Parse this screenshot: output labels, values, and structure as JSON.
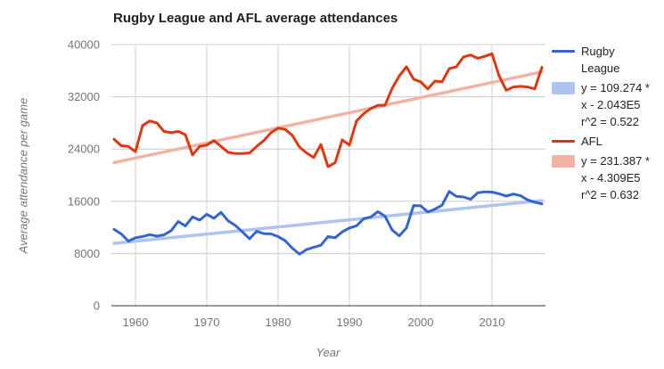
{
  "colors": {
    "rugby_line": "#3366cc",
    "afl_line": "#dc3912",
    "rugby_trend": "#aec3ef",
    "afl_trend": "#f3b3a4",
    "grid": "#cccccc",
    "axis_baseline": "#333333",
    "tick_text": "#757575",
    "title_text": "#212121",
    "legend_text": "#212121",
    "background": "#ffffff"
  },
  "legend": {
    "items": [
      {
        "swatch": "line",
        "label": "Rugby League"
      },
      {
        "swatch": "box",
        "line1": "y = 109.274 *",
        "line2": "x - 2.043E5",
        "line3": "r^2 = 0.522"
      },
      {
        "swatch": "line",
        "label": "AFL"
      },
      {
        "swatch": "box",
        "line1": "y = 231.387 *",
        "line2": "x - 4.309E5",
        "line3": "r^2 = 0.632"
      }
    ]
  },
  "chart_data": {
    "type": "line",
    "title": "Rugby League and AFL average attendances",
    "xlabel": "Year",
    "ylabel": "Average attendance per game",
    "legend_position": "right",
    "grid": true,
    "xlim": [
      1956.6,
      2017.6
    ],
    "ylim": [
      0,
      40000
    ],
    "x_range": [
      1957,
      2017
    ],
    "x_tick_values": [
      1960,
      1970,
      1980,
      1990,
      2000,
      2010
    ],
    "x_tick_labels": [
      "1960",
      "1970",
      "1980",
      "1990",
      "2000",
      "2010"
    ],
    "y_tick_values": [
      0,
      8000,
      16000,
      24000,
      32000,
      40000
    ],
    "y_tick_labels": [
      "0",
      "8000",
      "16000",
      "24000",
      "32000",
      "40000"
    ],
    "years": [
      1957,
      1958,
      1959,
      1960,
      1961,
      1962,
      1963,
      1964,
      1965,
      1966,
      1967,
      1968,
      1969,
      1970,
      1971,
      1972,
      1973,
      1974,
      1975,
      1976,
      1977,
      1978,
      1979,
      1980,
      1981,
      1982,
      1983,
      1984,
      1985,
      1986,
      1987,
      1988,
      1989,
      1990,
      1991,
      1992,
      1993,
      1994,
      1995,
      1996,
      1997,
      1998,
      1999,
      2000,
      2001,
      2002,
      2003,
      2004,
      2005,
      2006,
      2007,
      2008,
      2009,
      2010,
      2011,
      2012,
      2013,
      2014,
      2015,
      2016,
      2017
    ],
    "series": [
      {
        "name": "Rugby League",
        "color": "#3366cc",
        "values": [
          11700,
          11000,
          9900,
          10400,
          10600,
          10900,
          10650,
          10850,
          11500,
          12900,
          12200,
          13600,
          13100,
          14000,
          13400,
          14300,
          13000,
          12300,
          11300,
          10250,
          11400,
          11050,
          11000,
          10600,
          9950,
          8800,
          7900,
          8600,
          8950,
          9250,
          10600,
          10400,
          11300,
          11900,
          12250,
          13300,
          13600,
          14400,
          13700,
          11600,
          10700,
          11900,
          15350,
          15300,
          14350,
          14800,
          15400,
          17500,
          16750,
          16650,
          16300,
          17300,
          17450,
          17400,
          17150,
          16800,
          17100,
          16850,
          16200,
          15850,
          15600
        ]
      },
      {
        "name": "AFL",
        "color": "#dc3912",
        "values": [
          25500,
          24500,
          24400,
          23600,
          27600,
          28300,
          28000,
          26700,
          26500,
          26700,
          26200,
          23100,
          24400,
          24600,
          25300,
          24400,
          23500,
          23300,
          23300,
          23400,
          24400,
          25300,
          26500,
          27200,
          27000,
          26100,
          24300,
          23400,
          22700,
          24700,
          21300,
          21900,
          25400,
          24600,
          28300,
          29400,
          30200,
          30700,
          30700,
          33300,
          35200,
          36600,
          34700,
          34300,
          33200,
          34400,
          34300,
          36300,
          36600,
          38100,
          38400,
          37900,
          38200,
          38600,
          35200,
          33000,
          33500,
          33600,
          33500,
          33200,
          36500
        ]
      }
    ],
    "trendlines": [
      {
        "series": "Rugby League",
        "equation": "y = 109.274 * x - 2.043E5",
        "slope": 109.274,
        "intercept": -204300,
        "r2": 0.522,
        "color": "#aec3ef"
      },
      {
        "series": "AFL",
        "equation": "y = 231.387 * x - 4.309E5",
        "slope": 231.387,
        "intercept": -430900,
        "r2": 0.632,
        "color": "#f3b3a4"
      }
    ]
  }
}
